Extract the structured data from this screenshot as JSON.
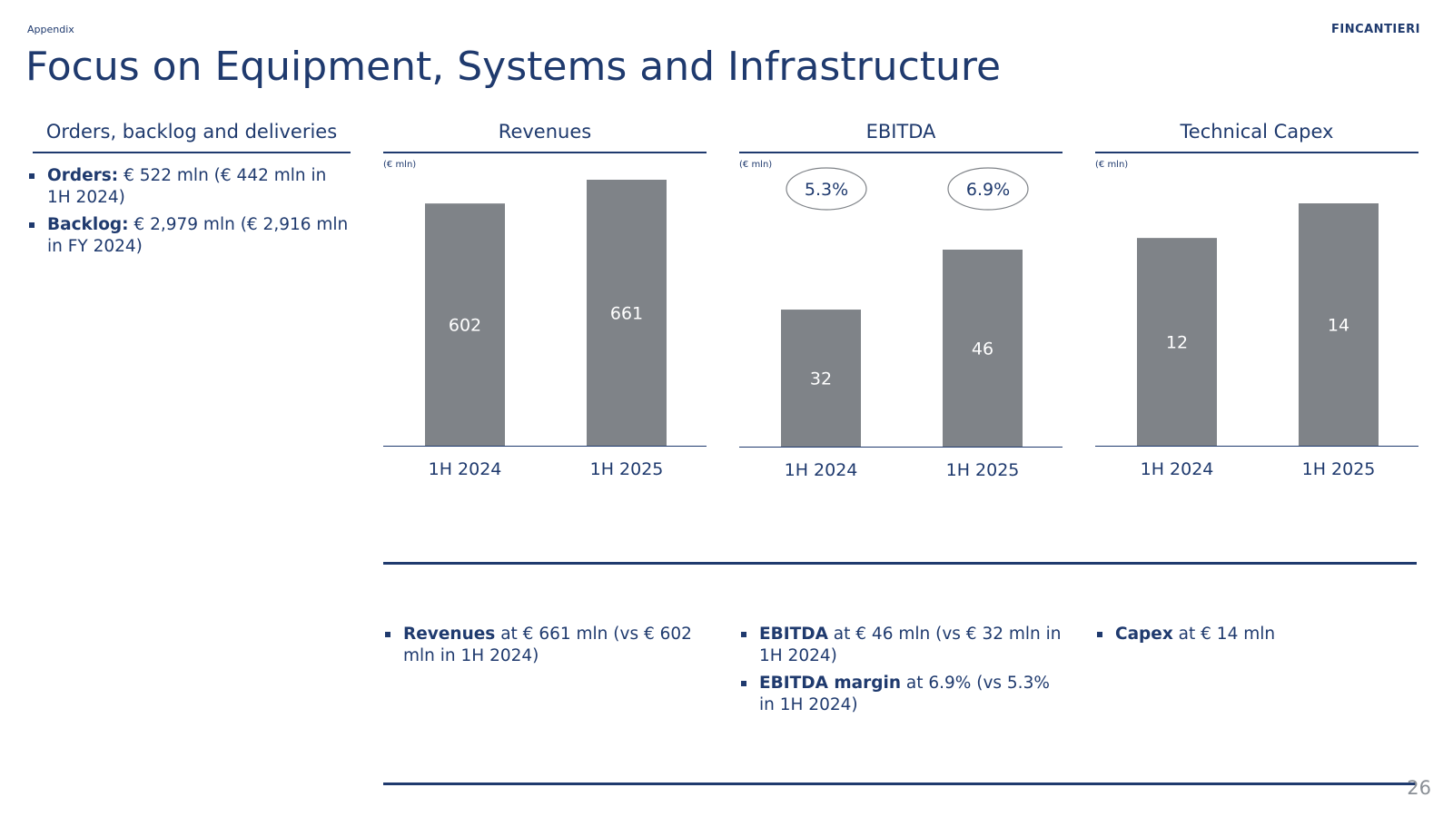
{
  "header": {
    "section": "Appendix",
    "logo": "FINCANTIERI",
    "title": "Focus on Equipment, Systems and Infrastructure"
  },
  "orders_panel": {
    "title": "Orders, backlog and deliveries",
    "bullets": [
      {
        "key": "Orders:",
        "text": " € 522 mln (€ 442 mln in 1H 2024)"
      },
      {
        "key": "Backlog:",
        "text": " € 2,979 mln (€ 2,916 mln in FY 2024)"
      }
    ]
  },
  "colors": {
    "bar": "#7f8388",
    "accent": "#1f3a6e"
  },
  "chart_data": [
    {
      "id": "revenues",
      "type": "bar",
      "title": "Revenues",
      "unit": "(€ mln)",
      "categories": [
        "1H 2024",
        "1H 2025"
      ],
      "values": [
        602,
        661
      ],
      "value_labels": [
        "602",
        "661"
      ]
    },
    {
      "id": "ebitda",
      "type": "bar",
      "title": "EBITDA",
      "unit": "(€ mln)",
      "categories": [
        "1H 2024",
        "1H 2025"
      ],
      "values": [
        32,
        46
      ],
      "value_labels": [
        "32",
        "46"
      ],
      "margins": [
        "5.3%",
        "6.9%"
      ]
    },
    {
      "id": "capex",
      "type": "bar",
      "title": "Technical Capex",
      "unit": "(€ mln)",
      "categories": [
        "1H 2024",
        "1H 2025"
      ],
      "values": [
        12,
        14
      ],
      "value_labels": [
        "12",
        "14"
      ]
    }
  ],
  "comments": {
    "revenues": [
      {
        "key": "Revenues",
        "text": " at € 661 mln (vs € 602 mln in 1H 2024)"
      }
    ],
    "ebitda": [
      {
        "key": "EBITDA",
        "text": " at € 46 mln (vs € 32 mln in 1H 2024)"
      },
      {
        "key": "EBITDA margin",
        "text": " at 6.9% (vs 5.3% in 1H 2024)"
      }
    ],
    "capex": [
      {
        "key": "Capex",
        "text": " at € 14 mln"
      }
    ]
  },
  "footer": {
    "page_number": "26"
  }
}
